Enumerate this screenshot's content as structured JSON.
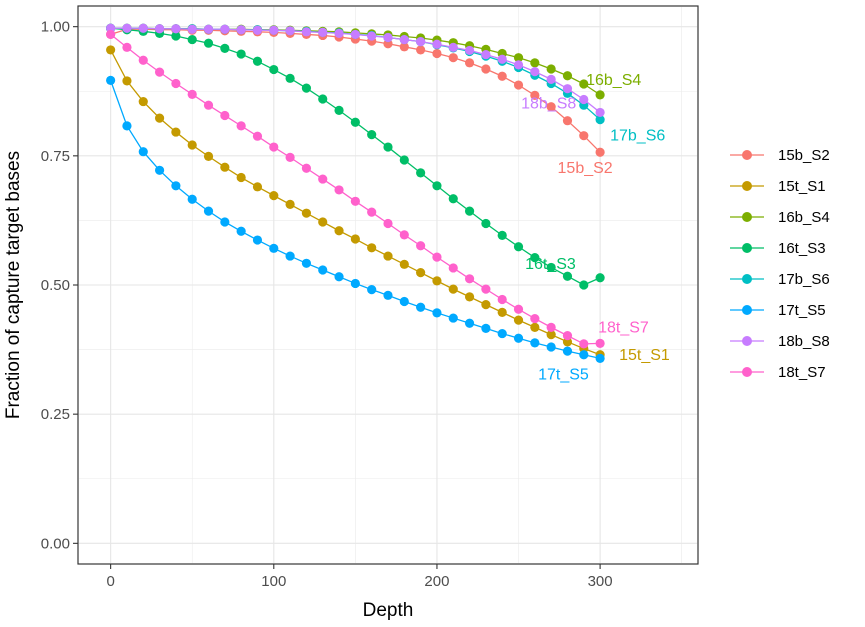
{
  "chart_data": {
    "type": "line",
    "xlabel": "Depth",
    "ylabel": "Fraction of capture target bases",
    "xlim": [
      -20,
      360
    ],
    "ylim": [
      -0.04,
      1.04
    ],
    "x_ticks": [
      0,
      100,
      200,
      300
    ],
    "y_ticks": [
      0.0,
      0.25,
      0.5,
      0.75,
      1.0
    ],
    "x_tick_labels": [
      "0",
      "100",
      "200",
      "300"
    ],
    "y_tick_labels": [
      "0.00",
      "0.25",
      "0.50",
      "0.75",
      "1.00"
    ],
    "grid": true,
    "legend_position": "right",
    "x": [
      0,
      10,
      20,
      30,
      40,
      50,
      60,
      70,
      80,
      90,
      100,
      110,
      120,
      130,
      140,
      150,
      160,
      170,
      180,
      190,
      200,
      210,
      220,
      230,
      240,
      250,
      260,
      270,
      280,
      290,
      300
    ],
    "series": [
      {
        "name": "15b_S2",
        "color": "#F8766D",
        "label": "15b_S2",
        "values": [
          0.985,
          0.995,
          0.995,
          0.994,
          0.994,
          0.993,
          0.993,
          0.992,
          0.991,
          0.99,
          0.989,
          0.987,
          0.985,
          0.983,
          0.98,
          0.976,
          0.972,
          0.967,
          0.961,
          0.955,
          0.948,
          0.94,
          0.93,
          0.918,
          0.904,
          0.887,
          0.867,
          0.845,
          0.818,
          0.789,
          0.757
        ]
      },
      {
        "name": "15t_S1",
        "color": "#C49A00",
        "label": "15t_S1",
        "values": [
          0.955,
          0.895,
          0.855,
          0.823,
          0.796,
          0.771,
          0.749,
          0.728,
          0.708,
          0.69,
          0.673,
          0.656,
          0.639,
          0.622,
          0.605,
          0.589,
          0.572,
          0.556,
          0.54,
          0.524,
          0.508,
          0.492,
          0.477,
          0.462,
          0.447,
          0.432,
          0.418,
          0.404,
          0.39,
          0.377,
          0.365
        ]
      },
      {
        "name": "16b_S4",
        "color": "#7CAE00",
        "label": "16b_S4",
        "values": [
          0.997,
          0.997,
          0.997,
          0.996,
          0.996,
          0.996,
          0.995,
          0.995,
          0.995,
          0.994,
          0.994,
          0.993,
          0.992,
          0.991,
          0.99,
          0.988,
          0.986,
          0.984,
          0.981,
          0.978,
          0.974,
          0.969,
          0.963,
          0.956,
          0.948,
          0.94,
          0.93,
          0.918,
          0.905,
          0.889,
          0.868
        ]
      },
      {
        "name": "16t_S3",
        "color": "#00BE67",
        "label": "16t_S3",
        "values": [
          0.997,
          0.994,
          0.991,
          0.987,
          0.982,
          0.975,
          0.968,
          0.958,
          0.947,
          0.933,
          0.917,
          0.9,
          0.881,
          0.86,
          0.838,
          0.815,
          0.791,
          0.767,
          0.742,
          0.717,
          0.692,
          0.667,
          0.643,
          0.619,
          0.596,
          0.574,
          0.553,
          0.534,
          0.517,
          0.5,
          0.514
        ]
      },
      {
        "name": "17b_S6",
        "color": "#00BFC4",
        "label": "17b_S6",
        "values": [
          0.997,
          0.997,
          0.997,
          0.996,
          0.996,
          0.996,
          0.995,
          0.995,
          0.994,
          0.994,
          0.993,
          0.992,
          0.991,
          0.989,
          0.988,
          0.985,
          0.983,
          0.979,
          0.975,
          0.971,
          0.965,
          0.959,
          0.952,
          0.943,
          0.933,
          0.921,
          0.906,
          0.89,
          0.871,
          0.848,
          0.82
        ]
      },
      {
        "name": "17t_S5",
        "color": "#00A9FF",
        "label": "17t_S5",
        "values": [
          0.896,
          0.808,
          0.758,
          0.722,
          0.692,
          0.666,
          0.643,
          0.622,
          0.604,
          0.587,
          0.571,
          0.556,
          0.542,
          0.529,
          0.516,
          0.503,
          0.491,
          0.48,
          0.468,
          0.457,
          0.446,
          0.436,
          0.426,
          0.416,
          0.406,
          0.397,
          0.388,
          0.38,
          0.372,
          0.365,
          0.358
        ]
      },
      {
        "name": "18b_S8",
        "color": "#C77CFF",
        "label": "18b_S8",
        "values": [
          0.997,
          0.997,
          0.997,
          0.996,
          0.996,
          0.995,
          0.995,
          0.995,
          0.994,
          0.993,
          0.993,
          0.992,
          0.99,
          0.989,
          0.987,
          0.985,
          0.982,
          0.979,
          0.975,
          0.971,
          0.966,
          0.96,
          0.954,
          0.946,
          0.937,
          0.926,
          0.913,
          0.898,
          0.88,
          0.859,
          0.834
        ]
      },
      {
        "name": "18t_S7",
        "color": "#FF61CC",
        "label": "18t_S7",
        "values": [
          0.985,
          0.96,
          0.935,
          0.912,
          0.89,
          0.869,
          0.848,
          0.828,
          0.808,
          0.788,
          0.767,
          0.747,
          0.726,
          0.705,
          0.684,
          0.662,
          0.641,
          0.619,
          0.597,
          0.576,
          0.554,
          0.533,
          0.512,
          0.492,
          0.472,
          0.453,
          0.435,
          0.418,
          0.402,
          0.386,
          0.387
        ]
      }
    ]
  }
}
